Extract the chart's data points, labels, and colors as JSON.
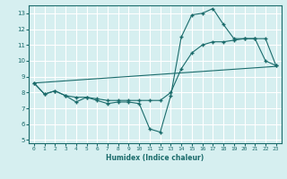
{
  "line1_x": [
    0,
    1,
    2,
    3,
    4,
    5,
    6,
    7,
    8,
    9,
    10,
    11,
    12,
    13,
    14,
    15,
    16,
    17,
    18,
    19,
    20,
    21,
    22,
    23
  ],
  "line1_y": [
    8.6,
    7.9,
    8.1,
    7.8,
    7.4,
    7.7,
    7.5,
    7.3,
    7.4,
    7.4,
    7.3,
    5.7,
    5.5,
    7.8,
    11.5,
    12.9,
    13.0,
    13.3,
    12.3,
    11.4,
    11.4,
    11.4,
    10.0,
    9.7
  ],
  "line2_x": [
    0,
    23
  ],
  "line2_y": [
    8.6,
    9.65
  ],
  "line3_x": [
    0,
    1,
    2,
    3,
    4,
    5,
    6,
    7,
    8,
    9,
    10,
    11,
    12,
    13,
    14,
    15,
    16,
    17,
    18,
    19,
    20,
    21,
    22,
    23
  ],
  "line3_y": [
    8.6,
    7.9,
    8.1,
    7.8,
    7.7,
    7.7,
    7.6,
    7.5,
    7.5,
    7.5,
    7.5,
    7.5,
    7.5,
    8.0,
    9.5,
    10.5,
    11.0,
    11.2,
    11.2,
    11.3,
    11.4,
    11.4,
    11.4,
    9.7
  ],
  "color": "#1a6b6b",
  "bg_color": "#d6eff0",
  "grid_color": "#ffffff",
  "xlim": [
    -0.5,
    23.5
  ],
  "ylim": [
    4.8,
    13.5
  ],
  "yticks": [
    5,
    6,
    7,
    8,
    9,
    10,
    11,
    12,
    13
  ],
  "xticks": [
    0,
    1,
    2,
    3,
    4,
    5,
    6,
    7,
    8,
    9,
    10,
    11,
    12,
    13,
    14,
    15,
    16,
    17,
    18,
    19,
    20,
    21,
    22,
    23
  ],
  "xlabel": "Humidex (Indice chaleur)",
  "marker": "+",
  "linewidth": 0.8,
  "markersize": 2.5,
  "tick_fontsize": 4.5,
  "xlabel_fontsize": 5.5
}
